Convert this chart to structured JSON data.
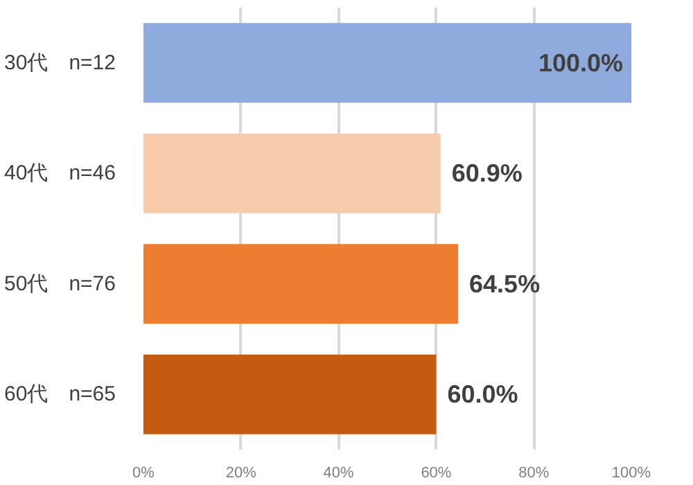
{
  "chart_data": {
    "type": "bar",
    "orientation": "horizontal",
    "categories": [
      "30代　n=12",
      "40代　n=46",
      "50代　n=76",
      "60代　n=65"
    ],
    "values": [
      100.0,
      60.9,
      64.5,
      60.0
    ],
    "colors": [
      "#8faadc",
      "#f8cbad",
      "#ed7d31",
      "#c55a11"
    ],
    "value_labels": [
      "100.0%",
      "60.9%",
      "64.5%",
      "60.0%"
    ],
    "xlim": [
      0,
      100
    ],
    "xticks": [
      {
        "value": 0,
        "label": "0%"
      },
      {
        "value": 20,
        "label": "20%"
      },
      {
        "value": 40,
        "label": "40%"
      },
      {
        "value": 60,
        "label": "60%"
      },
      {
        "value": 80,
        "label": "80%"
      },
      {
        "value": 100,
        "label": "100%"
      }
    ],
    "grid": "x"
  }
}
